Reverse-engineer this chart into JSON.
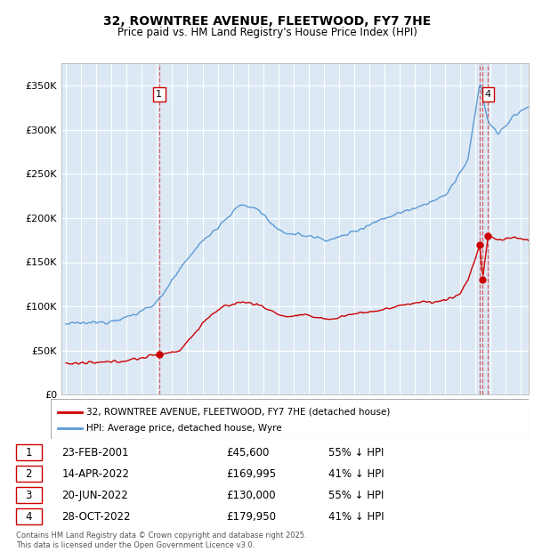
{
  "title": "32, ROWNTREE AVENUE, FLEETWOOD, FY7 7HE",
  "subtitle": "Price paid vs. HM Land Registry's House Price Index (HPI)",
  "hpi_color": "#5b9bd5",
  "price_color": "#cc0000",
  "plot_bg_color": "#dce9f5",
  "ylabel_ticks": [
    "£0",
    "£50K",
    "£100K",
    "£150K",
    "£200K",
    "£250K",
    "£300K",
    "£350K"
  ],
  "ylabel_values": [
    0,
    50000,
    100000,
    150000,
    200000,
    250000,
    300000,
    350000
  ],
  "ylim": [
    0,
    375000
  ],
  "xlim_start": 1994.7,
  "xlim_end": 2025.5,
  "xticks": [
    1995,
    1996,
    1997,
    1998,
    1999,
    2000,
    2001,
    2002,
    2003,
    2004,
    2005,
    2006,
    2007,
    2008,
    2009,
    2010,
    2011,
    2012,
    2013,
    2014,
    2015,
    2016,
    2017,
    2018,
    2019,
    2020,
    2021,
    2022,
    2023,
    2024,
    2025
  ],
  "sale_dates": [
    2001.14,
    2022.29,
    2022.46,
    2022.83
  ],
  "sale_prices": [
    45600,
    169995,
    130000,
    179950
  ],
  "sale_labels": [
    "1",
    "2",
    "3",
    "4"
  ],
  "legend_line1": "32, ROWNTREE AVENUE, FLEETWOOD, FY7 7HE (detached house)",
  "legend_line2": "HPI: Average price, detached house, Wyre",
  "table_rows": [
    [
      "1",
      "23-FEB-2001",
      "£45,600",
      "55% ↓ HPI"
    ],
    [
      "2",
      "14-APR-2022",
      "£169,995",
      "41% ↓ HPI"
    ],
    [
      "3",
      "20-JUN-2022",
      "£130,000",
      "55% ↓ HPI"
    ],
    [
      "4",
      "28-OCT-2022",
      "£179,950",
      "41% ↓ HPI"
    ]
  ],
  "footnote": "Contains HM Land Registry data © Crown copyright and database right 2025.\nThis data is licensed under the Open Government Licence v3.0."
}
